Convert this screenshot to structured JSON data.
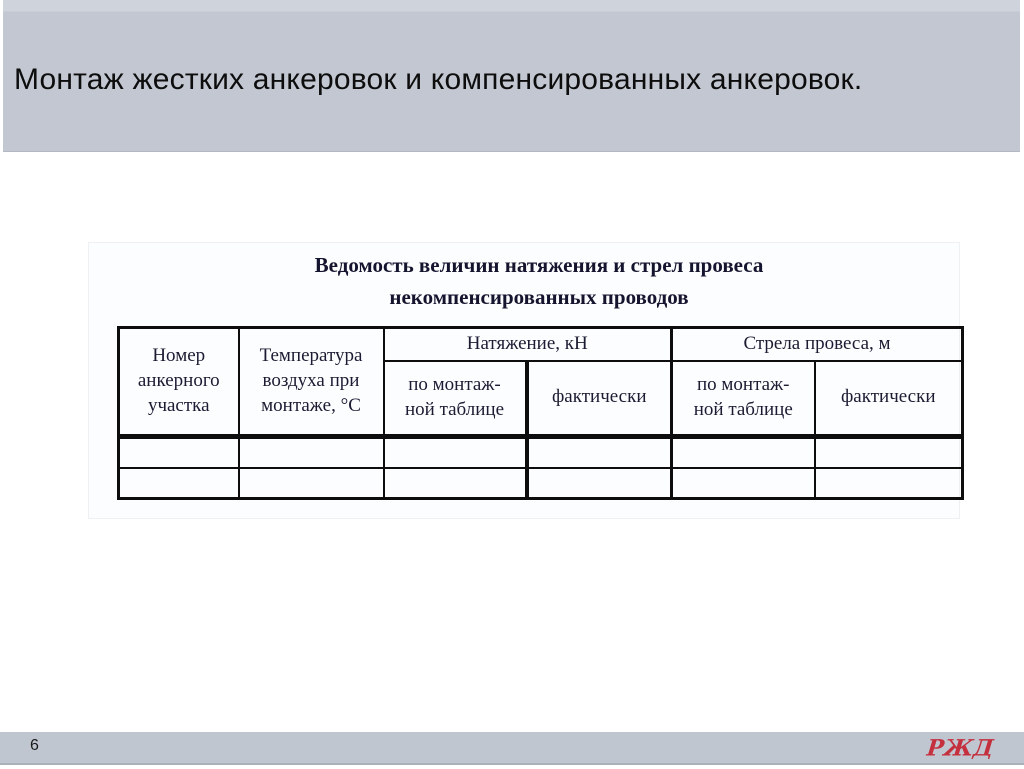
{
  "slide": {
    "title": "Монтаж жестких анкеровок и компенсированных анкеровок.",
    "page_number": "6"
  },
  "footer": {
    "logo_text": "РЖД",
    "logo_color": "#c5303e"
  },
  "table_figure": {
    "title_line1": "Ведомость величин натяжения и стрел провеса",
    "title_line2": "некомпенсированных проводов",
    "header": {
      "col_anchor_section": "Номер анкерного участка",
      "col_air_temperature": "Температура воздуха при монтаже, °С",
      "group_tension": "Натяжение, кН",
      "group_sag": "Стрела провеса, м",
      "sub_tension_by_table": "по монтаж-\nной таблице",
      "sub_tension_actual": "фактически",
      "sub_sag_by_table": "по монтаж-\nной таблице",
      "sub_sag_actual": "фактически"
    },
    "rows": [
      [
        "",
        "",
        "",
        "",
        "",
        ""
      ],
      [
        "",
        "",
        "",
        "",
        "",
        ""
      ]
    ]
  }
}
